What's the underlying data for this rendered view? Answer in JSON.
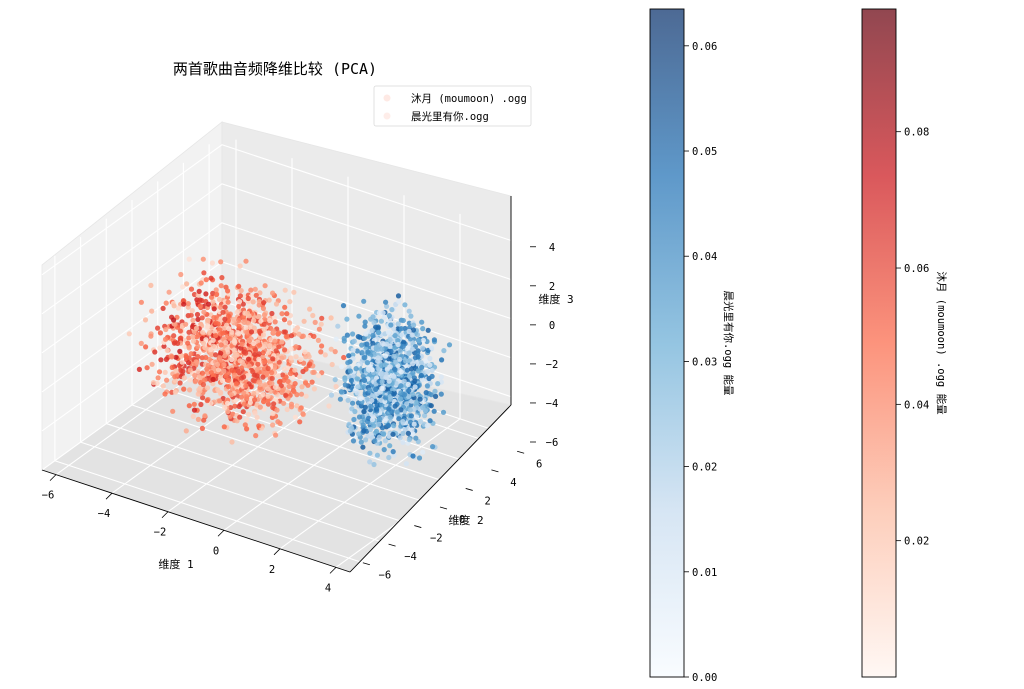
{
  "chart_data": {
    "type": "scatter",
    "projection": "3d",
    "title": "两首歌曲音频降维比较 (PCA)",
    "xlabel": "维度 1",
    "ylabel": "维度 2",
    "zlabel": "维度 3",
    "xlim": [
      -6.5,
      4.5
    ],
    "ylim": [
      -7,
      7
    ],
    "zlim": [
      -6,
      4.5
    ],
    "xticks": [
      -6,
      -4,
      -2,
      0,
      2,
      4
    ],
    "yticks": [
      -6,
      -4,
      -2,
      0,
      2,
      4,
      6
    ],
    "zticks": [
      -6,
      -4,
      -2,
      0,
      2,
      4
    ],
    "grid": true,
    "legend_position": "upper right",
    "legend": [
      "沐月 (moumoon) .ogg",
      "晨光里有你.ogg"
    ],
    "series": [
      {
        "name": "沐月 (moumoon) .ogg",
        "colormap": "Reds",
        "color_meaning": "energy",
        "energy_range": [
          0.0,
          0.098
        ],
        "x_range": [
          -6,
          1
        ],
        "y_range": [
          -4,
          3
        ],
        "z_range": [
          -5.5,
          3
        ],
        "approx_points": 1500
      },
      {
        "name": "晨光里有你.ogg",
        "colormap": "Blues",
        "color_meaning": "energy",
        "energy_range": [
          0.0,
          0.0635
        ],
        "x_range": [
          0.5,
          4
        ],
        "y_range": [
          -2,
          4
        ],
        "z_range": [
          -5.5,
          3.5
        ],
        "approx_points": 1500
      }
    ],
    "colorbars": [
      {
        "label": "晨光里有你.ogg 能量",
        "colormap": "Blues",
        "range": [
          0.0,
          0.0635
        ],
        "ticks": [
          "0.00",
          "0.01",
          "0.02",
          "0.03",
          "0.04",
          "0.05",
          "0.06"
        ]
      },
      {
        "label": "沐月 (moumoon) .ogg 能量",
        "colormap": "Reds",
        "range": [
          0.0,
          0.098
        ],
        "ticks": [
          "0.02",
          "0.04",
          "0.06",
          "0.08"
        ]
      }
    ]
  }
}
